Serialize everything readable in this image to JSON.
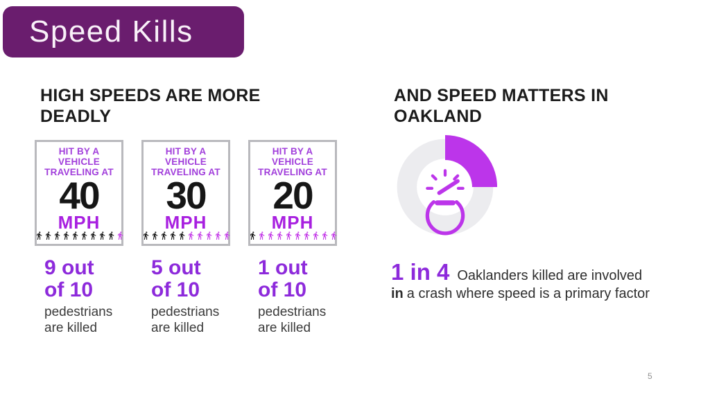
{
  "title_bar": {
    "label": "Speed Kills"
  },
  "meta": {
    "page_number": "5"
  },
  "colors": {
    "title_bg": "#6A1D6E",
    "heading_text": "#1B1B1B",
    "card_border": "#B9B9BD",
    "card_header_purple": "#A13EDB",
    "mph_purple": "#A820E0",
    "stat_purple": "#8D2ADB",
    "body_gray": "#3B3B3B",
    "donut_track": "#ECECEF",
    "donut_segment": "#BC35EA",
    "ped_black": "#151515",
    "ped_purple": "#C43BE8",
    "page_gray": "#909090"
  },
  "left_section": {
    "heading": "HIGH SPEEDS ARE MORE DEADLY",
    "cards": [
      {
        "header_lines": [
          "HIT BY A",
          "VEHICLE",
          "TRAVELING AT"
        ],
        "speed": "40",
        "unit": "MPH",
        "pedestrians": {
          "black": 9,
          "purple": 1
        },
        "stat_line1": "9 out",
        "stat_line2": "of 10",
        "caption_line1": "pedestrians",
        "caption_line2": "are killed"
      },
      {
        "header_lines": [
          "HIT BY A",
          "VEHICLE",
          "TRAVELING AT"
        ],
        "speed": "30",
        "unit": "MPH",
        "pedestrians": {
          "black": 5,
          "purple": 5
        },
        "stat_line1": "5 out",
        "stat_line2": "of 10",
        "caption_line1": "pedestrians",
        "caption_line2": "are killed"
      },
      {
        "header_lines": [
          "HIT BY A",
          "VEHICLE",
          "TRAVELING AT"
        ],
        "speed": "20",
        "unit": "MPH",
        "pedestrians": {
          "black": 1,
          "purple": 9
        },
        "stat_line1": "1 out",
        "stat_line2": "of 10",
        "caption_line1": "pedestrians",
        "caption_line2": "are killed"
      }
    ]
  },
  "right_section": {
    "heading": "AND SPEED MATTERS IN OAKLAND",
    "donut": {
      "percent": 25,
      "icon": "speedometer-icon"
    },
    "stat": {
      "big": "1 in 4",
      "line1": "Oaklanders killed are involved",
      "line2_emphasis": "in",
      "line2_rest": "a crash where speed is a primary factor"
    }
  },
  "chart_data": [
    {
      "type": "pictograph",
      "title": "HIGH SPEEDS ARE MORE DEADLY",
      "categories": [
        "Hit by a vehicle traveling at 40 MPH",
        "Hit by a vehicle traveling at 30 MPH",
        "Hit by a vehicle traveling at 20 MPH"
      ],
      "values": [
        9,
        5,
        1
      ],
      "denominator": 10,
      "value_label": "pedestrians killed out of 10"
    },
    {
      "type": "pie",
      "title": "AND SPEED MATTERS IN OAKLAND",
      "slices": [
        {
          "label": "Oaklanders killed involved in a crash where speed is a primary factor",
          "value": 25
        },
        {
          "label": "Other",
          "value": 75
        }
      ],
      "annotation": "1 in 4",
      "center_icon": "speedometer",
      "legend_position": "none"
    }
  ]
}
